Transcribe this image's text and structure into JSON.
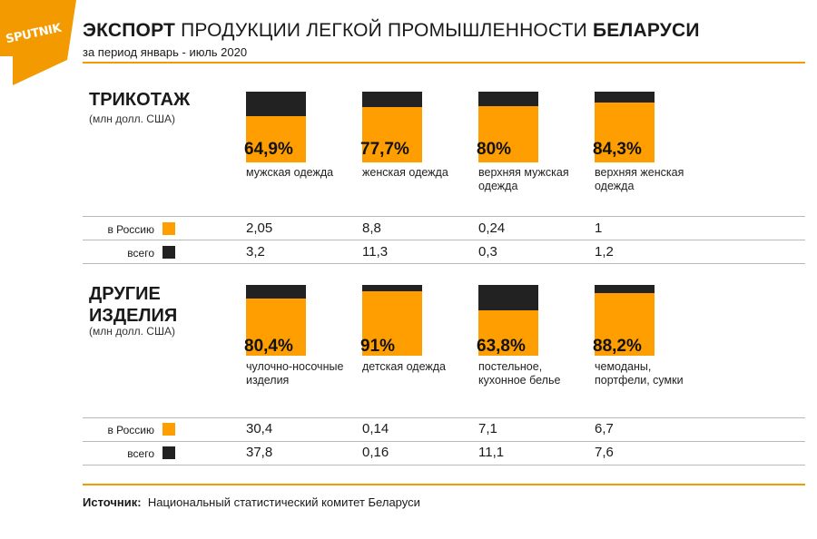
{
  "logo": {
    "text": "SPUTNIK",
    "color": "#f39a00"
  },
  "header": {
    "title_bold_1": "ЭКСПОРТ",
    "title_regular": "ПРОДУКЦИИ ЛЕГКОЙ ПРОМЫШЛЕННОСТИ",
    "title_bold_2": "БЕЛАРУСИ",
    "subtitle": "за период январь - июль 2020"
  },
  "legend": {
    "russia": "в Россию",
    "total": "всего",
    "russia_color": "#ff9e00",
    "total_color": "#222222"
  },
  "source": {
    "label": "Источник:",
    "text": "Национальный статистический комитет Беларуси"
  },
  "chart_data": [
    {
      "type": "bar",
      "title": "ТРИКОТАЖ",
      "unit": "(млн долл. США)",
      "categories": [
        "мужская одежда",
        "женская одежда",
        "верхняя мужская одежда",
        "верхняя женская одежда"
      ],
      "percent_labels": [
        "64,9%",
        "77,7%",
        "80%",
        "84,3%"
      ],
      "percent_values": [
        64.9,
        77.7,
        80,
        84.3
      ],
      "series": [
        {
          "name": "в Россию",
          "labels": [
            "2,05",
            "8,8",
            "0,24",
            "1"
          ],
          "values": [
            2.05,
            8.8,
            0.24,
            1
          ]
        },
        {
          "name": "всего",
          "labels": [
            "3,2",
            "11,3",
            "0,3",
            "1,2"
          ],
          "values": [
            3.2,
            11.3,
            0.3,
            1.2
          ]
        }
      ]
    },
    {
      "type": "bar",
      "title": "ДРУГИЕ ИЗДЕЛИЯ",
      "unit": "(млн долл. США)",
      "categories": [
        "чулочно-носочные изделия",
        "детская одежда",
        "постельное, кухонное белье",
        "чемоданы, портфели, сумки"
      ],
      "percent_labels": [
        "80,4%",
        "91%",
        "63,8%",
        "88,2%"
      ],
      "percent_values": [
        80.4,
        91,
        63.8,
        88.2
      ],
      "series": [
        {
          "name": "в Россию",
          "labels": [
            "30,4",
            "0,14",
            "7,1",
            "6,7"
          ],
          "values": [
            30.4,
            0.14,
            7.1,
            6.7
          ]
        },
        {
          "name": "всего",
          "labels": [
            "37,8",
            "0,16",
            "11,1",
            "7,6"
          ],
          "values": [
            37.8,
            0.16,
            11.1,
            7.6
          ]
        }
      ]
    }
  ]
}
